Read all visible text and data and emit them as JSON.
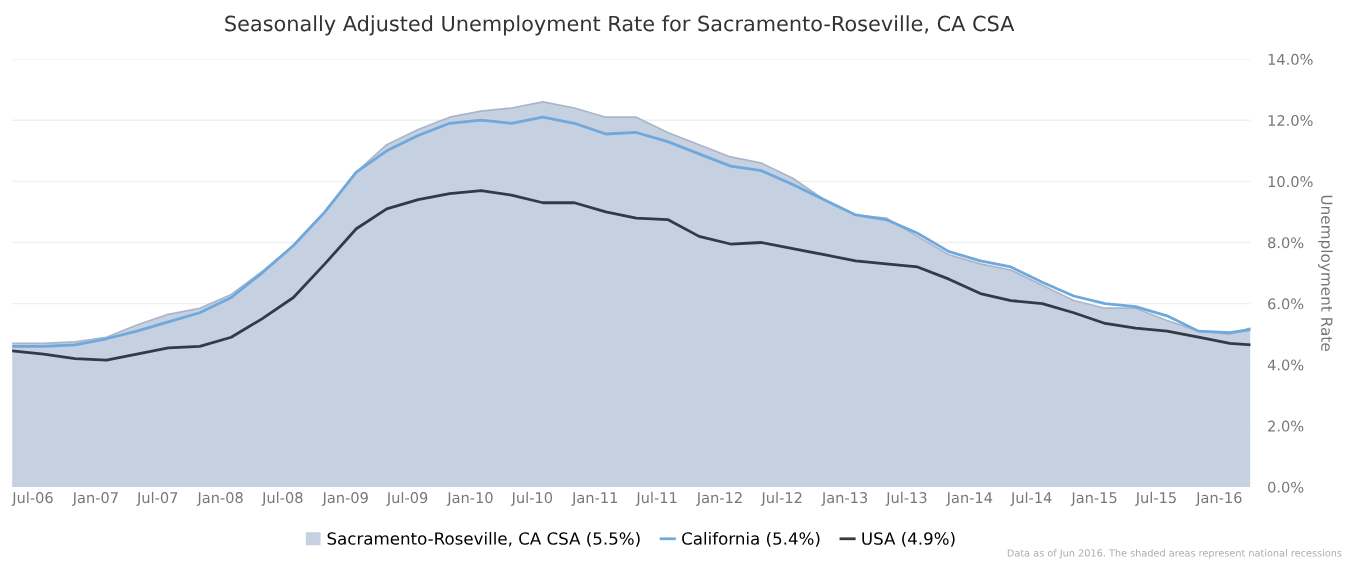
{
  "chart_data": {
    "type": "line",
    "title": "Seasonally Adjusted Unemployment Rate for Sacramento-Roseville, CA CSA",
    "ylabel": "Unemployment Rate",
    "x": [
      "2006-05",
      "2006-08",
      "2006-11",
      "2007-02",
      "2007-05",
      "2007-08",
      "2007-11",
      "2008-02",
      "2008-05",
      "2008-08",
      "2008-11",
      "2009-02",
      "2009-05",
      "2009-08",
      "2009-11",
      "2010-02",
      "2010-05",
      "2010-08",
      "2010-11",
      "2011-02",
      "2011-05",
      "2011-08",
      "2011-11",
      "2012-02",
      "2012-05",
      "2012-08",
      "2012-11",
      "2013-02",
      "2013-05",
      "2013-08",
      "2013-11",
      "2014-02",
      "2014-05",
      "2014-08",
      "2014-11",
      "2015-02",
      "2015-05",
      "2015-08",
      "2015-11",
      "2016-02",
      "2016-04"
    ],
    "series": [
      {
        "name": "Sacramento-Roseville, CA CSA (5.5%)",
        "type": "area",
        "color": "#c5d0e0",
        "values": [
          4.7,
          4.7,
          4.75,
          4.9,
          5.3,
          5.65,
          5.85,
          6.3,
          7.05,
          7.9,
          9.0,
          10.3,
          11.2,
          11.7,
          12.1,
          12.3,
          12.4,
          12.6,
          12.4,
          12.1,
          12.1,
          11.6,
          11.2,
          10.8,
          10.6,
          10.1,
          9.4,
          8.9,
          8.8,
          8.2,
          7.6,
          7.3,
          7.1,
          6.6,
          6.1,
          5.85,
          5.85,
          5.45,
          5.1,
          5.0,
          5.2
        ]
      },
      {
        "name": "California (5.4%)",
        "color": "#6fa8dc",
        "values": [
          4.6,
          4.6,
          4.65,
          4.85,
          5.1,
          5.4,
          5.7,
          6.2,
          7.0,
          7.9,
          9.0,
          10.3,
          11.0,
          11.5,
          11.9,
          12.0,
          11.9,
          12.1,
          11.9,
          11.55,
          11.6,
          11.3,
          10.9,
          10.5,
          10.35,
          9.9,
          9.4,
          8.9,
          8.75,
          8.3,
          7.7,
          7.4,
          7.2,
          6.7,
          6.25,
          6.0,
          5.9,
          5.6,
          5.1,
          5.05,
          5.15
        ]
      },
      {
        "name": "USA (4.9%)",
        "color": "#333a45",
        "values": [
          4.45,
          4.35,
          4.2,
          4.15,
          4.35,
          4.55,
          4.6,
          4.9,
          5.5,
          6.2,
          7.3,
          8.45,
          9.1,
          9.4,
          9.6,
          9.7,
          9.55,
          9.3,
          9.3,
          9.0,
          8.8,
          8.75,
          8.2,
          7.95,
          8.0,
          7.8,
          7.6,
          7.4,
          7.3,
          7.2,
          6.8,
          6.33,
          6.1,
          6.0,
          5.7,
          5.35,
          5.2,
          5.1,
          4.9,
          4.7,
          4.65
        ]
      }
    ],
    "xlim": [
      "2006-05",
      "2016-04"
    ],
    "xticks": [
      {
        "value": "2006-07",
        "label": "Jul-06"
      },
      {
        "value": "2007-01",
        "label": "Jan-07"
      },
      {
        "value": "2007-07",
        "label": "Jul-07"
      },
      {
        "value": "2008-01",
        "label": "Jan-08"
      },
      {
        "value": "2008-07",
        "label": "Jul-08"
      },
      {
        "value": "2009-01",
        "label": "Jan-09"
      },
      {
        "value": "2009-07",
        "label": "Jul-09"
      },
      {
        "value": "2010-01",
        "label": "Jan-10"
      },
      {
        "value": "2010-07",
        "label": "Jul-10"
      },
      {
        "value": "2011-01",
        "label": "Jan-11"
      },
      {
        "value": "2011-07",
        "label": "Jul-11"
      },
      {
        "value": "2012-01",
        "label": "Jan-12"
      },
      {
        "value": "2012-07",
        "label": "Jul-12"
      },
      {
        "value": "2013-01",
        "label": "Jan-13"
      },
      {
        "value": "2013-07",
        "label": "Jul-13"
      },
      {
        "value": "2014-01",
        "label": "Jan-14"
      },
      {
        "value": "2014-07",
        "label": "Jul-14"
      },
      {
        "value": "2015-01",
        "label": "Jan-15"
      },
      {
        "value": "2015-07",
        "label": "Jul-15"
      },
      {
        "value": "2016-01",
        "label": "Jan-16"
      }
    ],
    "ylim": [
      0,
      14
    ],
    "yticks": [
      {
        "value": 0,
        "label": "0.0%"
      },
      {
        "value": 2,
        "label": "2.0%"
      },
      {
        "value": 4,
        "label": "4.0%"
      },
      {
        "value": 6,
        "label": "6.0%"
      },
      {
        "value": 8,
        "label": "8.0%"
      },
      {
        "value": 10,
        "label": "10.0%"
      },
      {
        "value": 12,
        "label": "12.0%"
      },
      {
        "value": 14,
        "label": "14.0%"
      }
    ],
    "grid": "y",
    "legend": "bottom",
    "annotations": [
      "Data as of Jun 2016. The shaded areas represent national recessions"
    ]
  }
}
